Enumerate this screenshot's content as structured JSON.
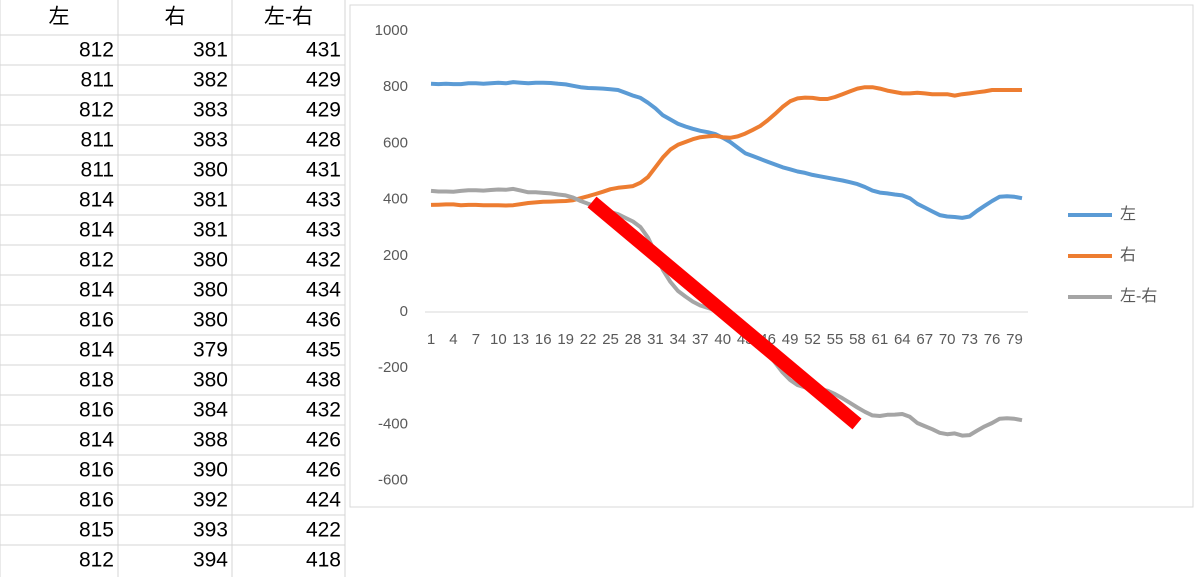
{
  "table": {
    "header": [
      "左",
      "右",
      "左-右"
    ],
    "rows": [
      [
        812,
        381,
        431
      ],
      [
        811,
        382,
        429
      ],
      [
        812,
        383,
        429
      ],
      [
        811,
        383,
        428
      ],
      [
        811,
        380,
        431
      ],
      [
        814,
        381,
        433
      ],
      [
        814,
        381,
        433
      ],
      [
        812,
        380,
        432
      ],
      [
        814,
        380,
        434
      ],
      [
        816,
        380,
        436
      ],
      [
        814,
        379,
        435
      ],
      [
        818,
        380,
        438
      ],
      [
        816,
        384,
        432
      ],
      [
        814,
        388,
        426
      ],
      [
        816,
        390,
        426
      ],
      [
        816,
        392,
        424
      ],
      [
        815,
        393,
        422
      ],
      [
        812,
        394,
        418
      ]
    ]
  },
  "chart_data": {
    "type": "line",
    "categories": [
      1,
      null,
      null,
      4,
      null,
      null,
      7,
      null,
      null,
      10,
      null,
      null,
      13,
      null,
      null,
      16,
      null,
      null,
      19,
      null,
      null,
      22,
      null,
      null,
      25,
      null,
      null,
      28,
      null,
      null,
      31,
      null,
      null,
      34,
      null,
      null,
      37,
      null,
      null,
      40,
      null,
      null,
      43,
      null,
      null,
      46,
      null,
      null,
      49,
      null,
      null,
      52,
      null,
      null,
      55,
      null,
      null,
      58,
      null,
      null,
      61,
      null,
      null,
      64,
      null,
      null,
      67,
      null,
      null,
      70,
      null,
      null,
      73,
      null,
      null,
      76,
      null,
      null,
      79,
      null
    ],
    "series": [
      {
        "name": "左",
        "color": "#5b9bd5",
        "values": [
          812,
          811,
          812,
          811,
          811,
          814,
          814,
          812,
          814,
          816,
          814,
          818,
          816,
          814,
          816,
          816,
          815,
          812,
          810,
          805,
          800,
          797,
          796,
          795,
          793,
          790,
          780,
          770,
          762,
          745,
          725,
          700,
          685,
          670,
          660,
          652,
          645,
          640,
          633,
          620,
          605,
          585,
          565,
          555,
          545,
          535,
          525,
          515,
          508,
          500,
          495,
          488,
          483,
          478,
          473,
          468,
          462,
          455,
          445,
          432,
          425,
          422,
          418,
          415,
          405,
          385,
          372,
          358,
          345,
          340,
          338,
          335,
          340,
          360,
          378,
          395,
          410,
          412,
          410,
          405
        ]
      },
      {
        "name": "右",
        "color": "#ed7d31",
        "values": [
          381,
          382,
          383,
          383,
          380,
          381,
          381,
          380,
          380,
          380,
          379,
          380,
          384,
          388,
          390,
          392,
          393,
          394,
          395,
          398,
          405,
          412,
          420,
          428,
          437,
          442,
          445,
          448,
          460,
          480,
          515,
          550,
          578,
          595,
          605,
          615,
          622,
          625,
          627,
          622,
          620,
          625,
          635,
          648,
          662,
          682,
          705,
          730,
          750,
          760,
          763,
          762,
          758,
          758,
          765,
          775,
          785,
          795,
          800,
          800,
          795,
          788,
          783,
          778,
          778,
          780,
          778,
          775,
          775,
          775,
          770,
          775,
          778,
          782,
          785,
          790,
          790,
          790,
          790,
          790
        ]
      },
      {
        "name": "左-右",
        "color": "#a5a5a5",
        "values": [
          431,
          429,
          429,
          428,
          431,
          433,
          433,
          432,
          434,
          436,
          435,
          438,
          432,
          426,
          426,
          424,
          422,
          418,
          415,
          407,
          395,
          385,
          376,
          367,
          356,
          348,
          335,
          322,
          302,
          265,
          210,
          150,
          107,
          75,
          55,
          37,
          23,
          15,
          6,
          -2,
          -15,
          -40,
          -70,
          -93,
          -117,
          -147,
          -180,
          -215,
          -242,
          -260,
          -268,
          -274,
          -275,
          -280,
          -292,
          -307,
          -323,
          -340,
          -355,
          -368,
          -370,
          -366,
          -365,
          -363,
          -373,
          -395,
          -406,
          -417,
          -430,
          -435,
          -432,
          -440,
          -438,
          -422,
          -407,
          -395,
          -380,
          -378,
          -380,
          -385
        ]
      }
    ],
    "ylim": [
      -600,
      1000
    ],
    "yticks": [
      -600,
      -400,
      -200,
      0,
      200,
      400,
      600,
      800,
      1000
    ],
    "grid": false,
    "legend": "right"
  }
}
